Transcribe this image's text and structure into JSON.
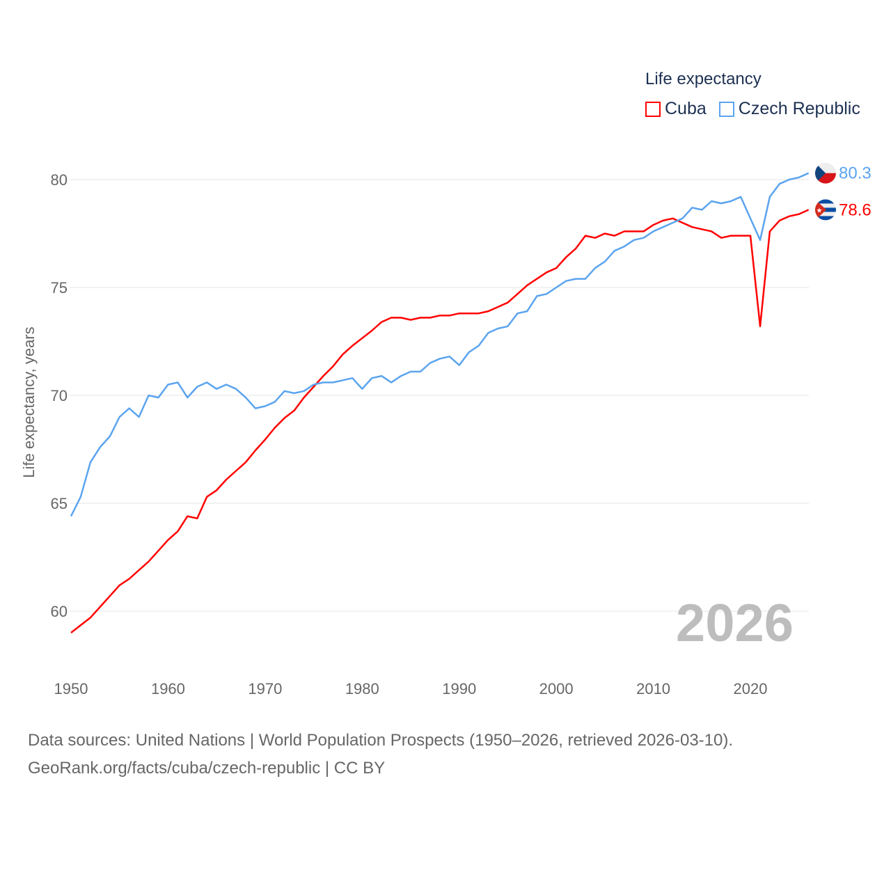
{
  "legend": {
    "title": "Life expectancy",
    "items": [
      {
        "label": "Cuba",
        "color": "#ff0000"
      },
      {
        "label": "Czech Republic",
        "color": "#5ba4ef"
      }
    ]
  },
  "year_watermark": "2026",
  "source": {
    "line1": "Data sources: United Nations | World Population Prospects (1950–2026, retrieved 2026-03-10).",
    "line2": "GeoRank.org/facts/cuba/czech-republic | CC BY"
  },
  "chart_data": {
    "type": "line",
    "title": "Life expectancy",
    "xlabel": "",
    "ylabel": "Life expectancy, years",
    "xlim": [
      1950,
      2026
    ],
    "ylim": [
      58,
      82
    ],
    "x_ticks": [
      "1950",
      "1960",
      "1970",
      "1980",
      "1990",
      "2000",
      "2010",
      "2020"
    ],
    "y_ticks": [
      "60",
      "65",
      "70",
      "75",
      "80"
    ],
    "grid": true,
    "legend_position": "top-right",
    "x_start": 1950,
    "series": [
      {
        "name": "Cuba",
        "color": "#ff0000",
        "end_label": "78.6",
        "flag": "cuba-flag",
        "values": [
          59.0,
          59.35,
          59.7,
          60.2,
          60.7,
          61.2,
          61.5,
          61.9,
          62.3,
          62.8,
          63.3,
          63.7,
          64.4,
          64.3,
          65.3,
          65.6,
          66.1,
          66.5,
          66.9,
          67.45,
          67.95,
          68.5,
          68.95,
          69.3,
          69.9,
          70.4,
          70.9,
          71.35,
          71.9,
          72.3,
          72.65,
          73.0,
          73.4,
          73.6,
          73.6,
          73.5,
          73.6,
          73.6,
          73.7,
          73.7,
          73.8,
          73.8,
          73.8,
          73.9,
          74.1,
          74.3,
          74.7,
          75.1,
          75.4,
          75.7,
          75.9,
          76.4,
          76.8,
          77.4,
          77.3,
          77.5,
          77.4,
          77.6,
          77.6,
          77.6,
          77.9,
          78.1,
          78.2,
          78.0,
          77.8,
          77.7,
          77.6,
          77.3,
          77.4,
          77.4,
          77.4,
          73.2,
          77.6,
          78.1,
          78.3,
          78.4,
          78.6
        ]
      },
      {
        "name": "Czech Republic",
        "color": "#5ba4ef",
        "end_label": "80.3",
        "flag": "czech-flag",
        "values": [
          64.4,
          65.3,
          66.9,
          67.6,
          68.1,
          69.0,
          69.4,
          69.0,
          70.0,
          69.9,
          70.5,
          70.6,
          69.9,
          70.4,
          70.6,
          70.3,
          70.5,
          70.3,
          69.9,
          69.4,
          69.5,
          69.7,
          70.2,
          70.1,
          70.2,
          70.5,
          70.6,
          70.6,
          70.7,
          70.8,
          70.3,
          70.8,
          70.9,
          70.6,
          70.9,
          71.1,
          71.1,
          71.5,
          71.7,
          71.8,
          71.4,
          72.0,
          72.3,
          72.9,
          73.1,
          73.2,
          73.8,
          73.9,
          74.6,
          74.7,
          75.0,
          75.3,
          75.4,
          75.4,
          75.9,
          76.2,
          76.7,
          76.9,
          77.2,
          77.3,
          77.6,
          77.8,
          78.0,
          78.2,
          78.7,
          78.6,
          79.0,
          78.9,
          79.0,
          79.2,
          78.2,
          77.2,
          79.2,
          79.8,
          80.0,
          80.1,
          80.3
        ]
      }
    ]
  }
}
